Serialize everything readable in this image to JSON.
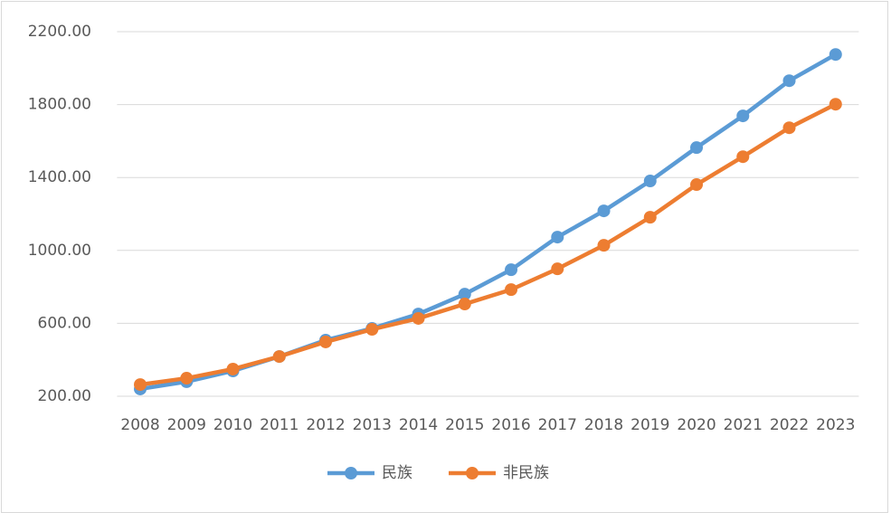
{
  "chart_data": {
    "type": "line",
    "categories": [
      "2008",
      "2009",
      "2010",
      "2011",
      "2012",
      "2013",
      "2014",
      "2015",
      "2016",
      "2017",
      "2018",
      "2019",
      "2020",
      "2021",
      "2022",
      "2023"
    ],
    "series": [
      {
        "name": "民族",
        "color": "#5b9bd5",
        "values": [
          240,
          280,
          339,
          418,
          508,
          572,
          651,
          760,
          894,
          1073,
          1217,
          1381,
          1564,
          1738,
          1931,
          2075
        ]
      },
      {
        "name": "非民族",
        "color": "#ed7d31",
        "values": [
          264,
          299,
          349,
          418,
          498,
          567,
          627,
          706,
          785,
          899,
          1028,
          1182,
          1361,
          1514,
          1673,
          1802
        ]
      }
    ],
    "ylim": [
      200,
      2200
    ],
    "yticks": [
      {
        "value": 200,
        "label": "200.00"
      },
      {
        "value": 600,
        "label": "600.00"
      },
      {
        "value": 1000,
        "label": "1000.00"
      },
      {
        "value": 1400,
        "label": "1400.00"
      },
      {
        "value": 1800,
        "label": "1800.00"
      },
      {
        "value": 2200,
        "label": "2200.00"
      }
    ],
    "grid": true,
    "legend": "bottom"
  }
}
